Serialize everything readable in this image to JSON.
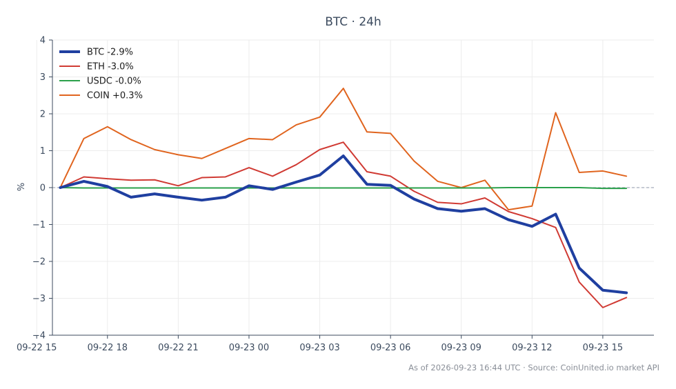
{
  "chart_data": {
    "type": "line",
    "title": "BTC · 24h",
    "ylabel": "%",
    "xlabel": "",
    "ylim": [
      -4,
      4
    ],
    "yticks": [
      4,
      3,
      2,
      1,
      0,
      -1,
      -2,
      -3,
      -4
    ],
    "ytick_labels": [
      "4",
      "3",
      "2",
      "1",
      "0",
      "−1",
      "−2",
      "−3",
      "−4"
    ],
    "xlim": [
      "09-22 15:40",
      "09-23 17:10"
    ],
    "xticks": [
      "09-22 15:00",
      "09-22 18:00",
      "09-22 21:00",
      "09-23 00:00",
      "09-23 03:00",
      "09-23 06:00",
      "09-23 09:00",
      "09-23 12:00",
      "09-23 15:00"
    ],
    "xtick_labels": [
      "09-22 15",
      "09-22 18",
      "09-22 21",
      "09-23 00",
      "09-23 03",
      "09-23 06",
      "09-23 09",
      "09-23 12",
      "09-23 15"
    ],
    "x": [
      "09-22 16:00",
      "09-22 17:00",
      "09-22 18:00",
      "09-22 19:00",
      "09-22 20:00",
      "09-22 21:00",
      "09-22 22:00",
      "09-22 23:00",
      "09-23 00:00",
      "09-23 01:00",
      "09-23 02:00",
      "09-23 03:00",
      "09-23 04:00",
      "09-23 05:00",
      "09-23 06:00",
      "09-23 07:00",
      "09-23 08:00",
      "09-23 09:00",
      "09-23 10:00",
      "09-23 11:00",
      "09-23 12:00",
      "09-23 13:00",
      "09-23 14:00",
      "09-23 15:00",
      "09-23 16:00"
    ],
    "zero_line": true,
    "grid": true,
    "legend_position": "top-left",
    "series": [
      {
        "name": "BTC -2.9%",
        "color": "#1f3fa0",
        "width": 4,
        "values": [
          0.0,
          0.17,
          0.03,
          -0.26,
          -0.17,
          -0.26,
          -0.34,
          -0.26,
          0.05,
          -0.05,
          0.15,
          0.34,
          0.86,
          0.09,
          0.06,
          -0.31,
          -0.57,
          -0.64,
          -0.57,
          -0.87,
          -1.05,
          -0.72,
          -2.18,
          -2.78,
          -2.85
        ]
      },
      {
        "name": "ETH -3.0%",
        "color": "#d03a33",
        "width": 2,
        "values": [
          0.0,
          0.29,
          0.24,
          0.2,
          0.21,
          0.05,
          0.27,
          0.29,
          0.54,
          0.31,
          0.62,
          1.03,
          1.23,
          0.43,
          0.31,
          -0.1,
          -0.4,
          -0.44,
          -0.28,
          -0.65,
          -0.84,
          -1.08,
          -2.56,
          -3.25,
          -2.98
        ]
      },
      {
        "name": "USDC -0.0%",
        "color": "#2aa04a",
        "width": 2,
        "values": [
          0.0,
          -0.01,
          -0.01,
          -0.01,
          -0.01,
          -0.01,
          -0.01,
          -0.01,
          -0.01,
          -0.01,
          -0.01,
          -0.01,
          -0.01,
          -0.01,
          -0.01,
          -0.01,
          -0.01,
          -0.01,
          -0.01,
          0.0,
          0.0,
          0.0,
          0.0,
          -0.02,
          -0.02
        ]
      },
      {
        "name": "COIN +0.3%",
        "color": "#e0641e",
        "width": 2,
        "values": [
          0.0,
          1.33,
          1.65,
          1.3,
          1.03,
          0.89,
          0.79,
          1.06,
          1.33,
          1.3,
          1.7,
          1.91,
          2.69,
          1.51,
          1.47,
          0.72,
          0.17,
          0.0,
          0.2,
          -0.6,
          -0.5,
          2.03,
          0.41,
          0.45,
          0.31
        ]
      }
    ]
  },
  "footer": {
    "text": "As of 2026-09-23 16:44 UTC · Source: CoinUnited.io market API"
  }
}
